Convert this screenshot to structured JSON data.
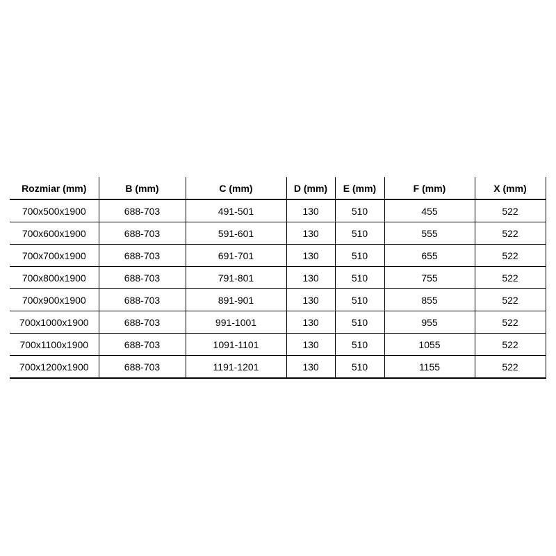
{
  "page": {
    "background_color": "#ffffff"
  },
  "table": {
    "border_color": "#000000",
    "text_color": "#000000",
    "columns": [
      {
        "key": "rozmiar",
        "label": "Rozmiar (mm)"
      },
      {
        "key": "b",
        "label": "B (mm)"
      },
      {
        "key": "c",
        "label": "C (mm)"
      },
      {
        "key": "d",
        "label": "D (mm)"
      },
      {
        "key": "e",
        "label": "E (mm)"
      },
      {
        "key": "f",
        "label": "F (mm)"
      },
      {
        "key": "x",
        "label": "X (mm)"
      }
    ],
    "rows": [
      [
        "700x500x1900",
        "688-703",
        "491-501",
        "130",
        "510",
        "455",
        "522"
      ],
      [
        "700x600x1900",
        "688-703",
        "591-601",
        "130",
        "510",
        "555",
        "522"
      ],
      [
        "700x700x1900",
        "688-703",
        "691-701",
        "130",
        "510",
        "655",
        "522"
      ],
      [
        "700x800x1900",
        "688-703",
        "791-801",
        "130",
        "510",
        "755",
        "522"
      ],
      [
        "700x900x1900",
        "688-703",
        "891-901",
        "130",
        "510",
        "855",
        "522"
      ],
      [
        "700x1000x1900",
        "688-703",
        "991-1001",
        "130",
        "510",
        "955",
        "522"
      ],
      [
        "700x1100x1900",
        "688-703",
        "1091-1101",
        "130",
        "510",
        "1055",
        "522"
      ],
      [
        "700x1200x1900",
        "688-703",
        "1191-1201",
        "130",
        "510",
        "1155",
        "522"
      ]
    ]
  }
}
